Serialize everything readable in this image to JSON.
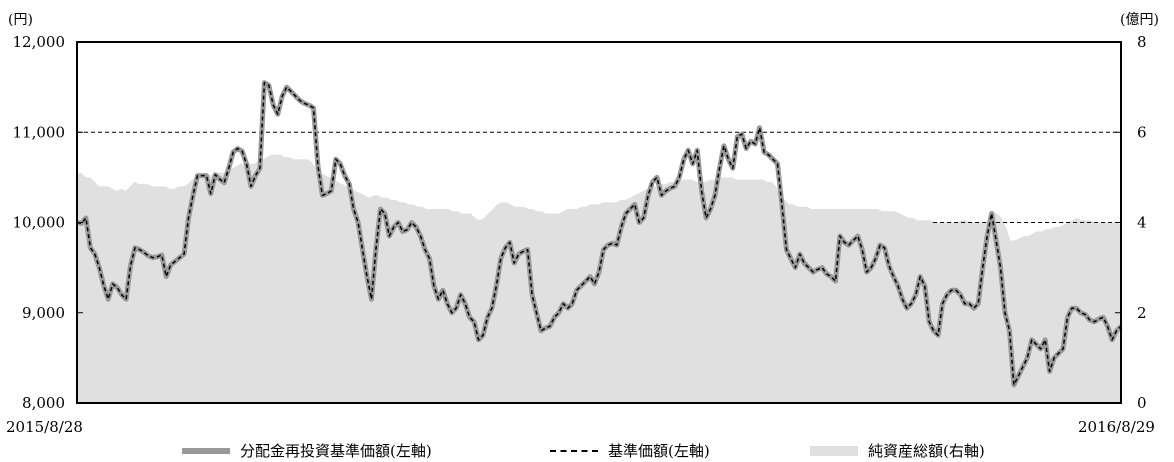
{
  "chart_data": {
    "type": "line",
    "left_axis_unit": "(円)",
    "right_axis_unit": "(億円)",
    "y_left_ticks": [
      "12,000",
      "11,000",
      "10,000",
      "9,000",
      "8,000"
    ],
    "y_left_tick_values": [
      12000,
      11000,
      10000,
      9000,
      8000
    ],
    "y_right_ticks": [
      "8",
      "6",
      "4",
      "2",
      "0"
    ],
    "y_right_tick_values": [
      8,
      6,
      4,
      2,
      0
    ],
    "ylim_left": [
      8000,
      12000
    ],
    "ylim_right": [
      0,
      8
    ],
    "x_start_label": "2015/8/28",
    "x_end_label": "2016/8/29",
    "series": [
      {
        "name": "分配金再投資基準価額(左軸)",
        "axis": "left",
        "color": "#999999",
        "values": [
          10000,
          9990,
          10050,
          9720,
          9650,
          9500,
          9300,
          9150,
          9320,
          9280,
          9200,
          9150,
          9520,
          9720,
          9700,
          9670,
          9630,
          9610,
          9620,
          9640,
          9400,
          9530,
          9570,
          9610,
          9650,
          10050,
          10300,
          10520,
          10520,
          10520,
          10320,
          10530,
          10480,
          10440,
          10600,
          10780,
          10820,
          10790,
          10650,
          10400,
          10520,
          10600,
          11550,
          11520,
          11300,
          11200,
          11400,
          11500,
          11450,
          11400,
          11350,
          11320,
          11300,
          11270,
          10630,
          10300,
          10320,
          10350,
          10700,
          10650,
          10520,
          10430,
          10150,
          10000,
          9700,
          9400,
          9150,
          9700,
          10150,
          10100,
          9850,
          9950,
          10000,
          9900,
          9920,
          10000,
          9950,
          9850,
          9700,
          9600,
          9300,
          9150,
          9250,
          9100,
          9000,
          9050,
          9200,
          9100,
          8950,
          8900,
          8700,
          8750,
          8950,
          9050,
          9300,
          9600,
          9720,
          9780,
          9550,
          9650,
          9680,
          9700,
          9200,
          9000,
          8800,
          8830,
          8850,
          8950,
          9000,
          9100,
          9050,
          9100,
          9250,
          9300,
          9350,
          9400,
          9320,
          9450,
          9700,
          9750,
          9770,
          9750,
          9950,
          10100,
          10150,
          10200,
          10000,
          10050,
          10300,
          10450,
          10500,
          10300,
          10350,
          10380,
          10400,
          10500,
          10700,
          10800,
          10650,
          10800,
          10350,
          10050,
          10150,
          10300,
          10600,
          10850,
          10700,
          10600,
          10950,
          10980,
          10820,
          10900,
          10870,
          11050,
          10780,
          10750,
          10700,
          10650,
          10200,
          9700,
          9600,
          9500,
          9650,
          9550,
          9500,
          9450,
          9480,
          9500,
          9430,
          9400,
          9350,
          9850,
          9780,
          9750,
          9800,
          9850,
          9700,
          9450,
          9500,
          9600,
          9750,
          9720,
          9520,
          9400,
          9300,
          9150,
          9050,
          9100,
          9200,
          9400,
          9300,
          8900,
          8800,
          8750,
          9100,
          9200,
          9250,
          9250,
          9200,
          9100,
          9100,
          9050,
          9100,
          9500,
          9850,
          10100,
          9800,
          9500,
          9000,
          8800,
          8200,
          8300,
          8400,
          8500,
          8700,
          8650,
          8600,
          8700,
          8350,
          8500,
          8550,
          8600,
          8950,
          9050,
          9050,
          9000,
          8980,
          8920,
          8900,
          8930,
          8950,
          8850,
          8700,
          8800,
          8850
        ]
      },
      {
        "name": "基準価額(左軸)",
        "axis": "left",
        "color": "#000000",
        "dashed": true,
        "values": [
          10000,
          9990,
          10050,
          9720,
          9650,
          9500,
          9300,
          9150,
          9320,
          9280,
          9200,
          9150,
          9520,
          9720,
          9700,
          9670,
          9630,
          9610,
          9620,
          9640,
          9400,
          9530,
          9570,
          9610,
          9650,
          10050,
          10300,
          10520,
          10520,
          10520,
          10320,
          10530,
          10480,
          10440,
          10600,
          10780,
          10820,
          10790,
          10650,
          10400,
          10520,
          10600,
          11550,
          11520,
          11300,
          11200,
          11400,
          11500,
          11450,
          11400,
          11350,
          11320,
          11300,
          11270,
          10630,
          10300,
          10320,
          10350,
          10700,
          10650,
          10520,
          10430,
          10150,
          10000,
          9700,
          9400,
          9150,
          9700,
          10150,
          10100,
          9850,
          9950,
          10000,
          9900,
          9920,
          10000,
          9950,
          9850,
          9700,
          9600,
          9300,
          9150,
          9250,
          9100,
          9000,
          9050,
          9200,
          9100,
          8950,
          8900,
          8700,
          8750,
          8950,
          9050,
          9300,
          9600,
          9720,
          9780,
          9550,
          9650,
          9680,
          9700,
          9200,
          9000,
          8800,
          8830,
          8850,
          8950,
          9000,
          9100,
          9050,
          9100,
          9250,
          9300,
          9350,
          9400,
          9320,
          9450,
          9700,
          9750,
          9770,
          9750,
          9950,
          10100,
          10150,
          10200,
          10000,
          10050,
          10300,
          10450,
          10500,
          10300,
          10350,
          10380,
          10400,
          10500,
          10700,
          10800,
          10650,
          10800,
          10350,
          10050,
          10150,
          10300,
          10600,
          10850,
          10700,
          10600,
          10950,
          10980,
          10820,
          10900,
          10870,
          11050,
          10780,
          10750,
          10700,
          10650,
          10200,
          9700,
          9600,
          9500,
          9650,
          9550,
          9500,
          9450,
          9480,
          9500,
          9430,
          9400,
          9350,
          9850,
          9780,
          9750,
          9800,
          9850,
          9700,
          9450,
          9500,
          9600,
          9750,
          9720,
          9520,
          9400,
          9300,
          9150,
          9050,
          9100,
          9200,
          9400,
          9300,
          8900,
          8800,
          8750,
          9100,
          9200,
          9250,
          9250,
          9200,
          9100,
          9100,
          9050,
          9100,
          9500,
          9850,
          10100,
          9800,
          9500,
          9000,
          8800,
          8200,
          8300,
          8400,
          8500,
          8700,
          8650,
          8600,
          8700,
          8350,
          8500,
          8550,
          8600,
          8950,
          9050,
          9050,
          9000,
          8980,
          8920,
          8900,
          8930,
          8950,
          8850,
          8700,
          8800,
          8850
        ]
      },
      {
        "name": "純資産総額(右軸)",
        "axis": "right",
        "color": "#e0e0e0",
        "area": true,
        "values": [
          5.1,
          5.1,
          5.0,
          5.0,
          4.9,
          4.8,
          4.8,
          4.8,
          4.75,
          4.7,
          4.75,
          4.7,
          4.8,
          4.9,
          4.85,
          4.85,
          4.85,
          4.8,
          4.8,
          4.8,
          4.8,
          4.75,
          4.75,
          4.8,
          4.8,
          4.85,
          4.95,
          5.0,
          5.0,
          5.0,
          5.05,
          5.05,
          5.1,
          5.1,
          5.15,
          5.2,
          5.25,
          5.3,
          5.3,
          5.3,
          5.3,
          5.35,
          5.4,
          5.45,
          5.5,
          5.5,
          5.5,
          5.45,
          5.45,
          5.4,
          5.4,
          5.4,
          5.4,
          5.35,
          5.2,
          5.1,
          5.05,
          5.0,
          4.95,
          4.9,
          4.85,
          4.8,
          4.75,
          4.7,
          4.65,
          4.6,
          4.55,
          4.6,
          4.6,
          4.55,
          4.55,
          4.5,
          4.5,
          4.45,
          4.45,
          4.4,
          4.4,
          4.35,
          4.35,
          4.3,
          4.3,
          4.3,
          4.3,
          4.3,
          4.3,
          4.25,
          4.25,
          4.2,
          4.2,
          4.2,
          4.1,
          4.05,
          4.1,
          4.2,
          4.3,
          4.4,
          4.45,
          4.45,
          4.4,
          4.35,
          4.35,
          4.35,
          4.3,
          4.3,
          4.25,
          4.25,
          4.2,
          4.2,
          4.2,
          4.2,
          4.25,
          4.3,
          4.3,
          4.3,
          4.35,
          4.35,
          4.4,
          4.4,
          4.4,
          4.45,
          4.45,
          4.45,
          4.45,
          4.5,
          4.5,
          4.55,
          4.6,
          4.65,
          4.7,
          4.75,
          4.8,
          4.8,
          4.85,
          4.85,
          4.9,
          4.9,
          4.9,
          4.95,
          4.95,
          4.95,
          4.9,
          4.9,
          4.9,
          4.95,
          4.95,
          5.0,
          5.0,
          5.0,
          5.0,
          4.95,
          4.95,
          4.95,
          4.95,
          4.95,
          4.95,
          4.95,
          4.9,
          4.9,
          4.8,
          4.6,
          4.5,
          4.4,
          4.4,
          4.35,
          4.35,
          4.35,
          4.3,
          4.3,
          4.3,
          4.3,
          4.3,
          4.3,
          4.3,
          4.3,
          4.3,
          4.3,
          4.3,
          4.3,
          4.3,
          4.3,
          4.3,
          4.3,
          4.25,
          4.25,
          4.25,
          4.25,
          4.2,
          4.15,
          4.1,
          4.1,
          4.05,
          4.05,
          4.05,
          4.05,
          4.0,
          4.0,
          4.0,
          4.0,
          4.0,
          4.0,
          4.05,
          4.05,
          4.0,
          4.0,
          4.0,
          4.0,
          4.05,
          4.25,
          4.2,
          4.1,
          3.9,
          3.6,
          3.6,
          3.65,
          3.7,
          3.7,
          3.75,
          3.8,
          3.8,
          3.85,
          3.85,
          3.9,
          3.9,
          3.95,
          4.0,
          4.05,
          4.1,
          4.05,
          4.05,
          4.05,
          4.0,
          4.0,
          4.0,
          4.0,
          4.0,
          4.0,
          3.95
        ]
      }
    ],
    "reference_line": {
      "axis": "left",
      "value": 11000
    },
    "secondary_reference_line": {
      "axis": "left",
      "value": 10000,
      "from_fraction": 0.82
    },
    "grid": false,
    "legend_position": "bottom"
  }
}
